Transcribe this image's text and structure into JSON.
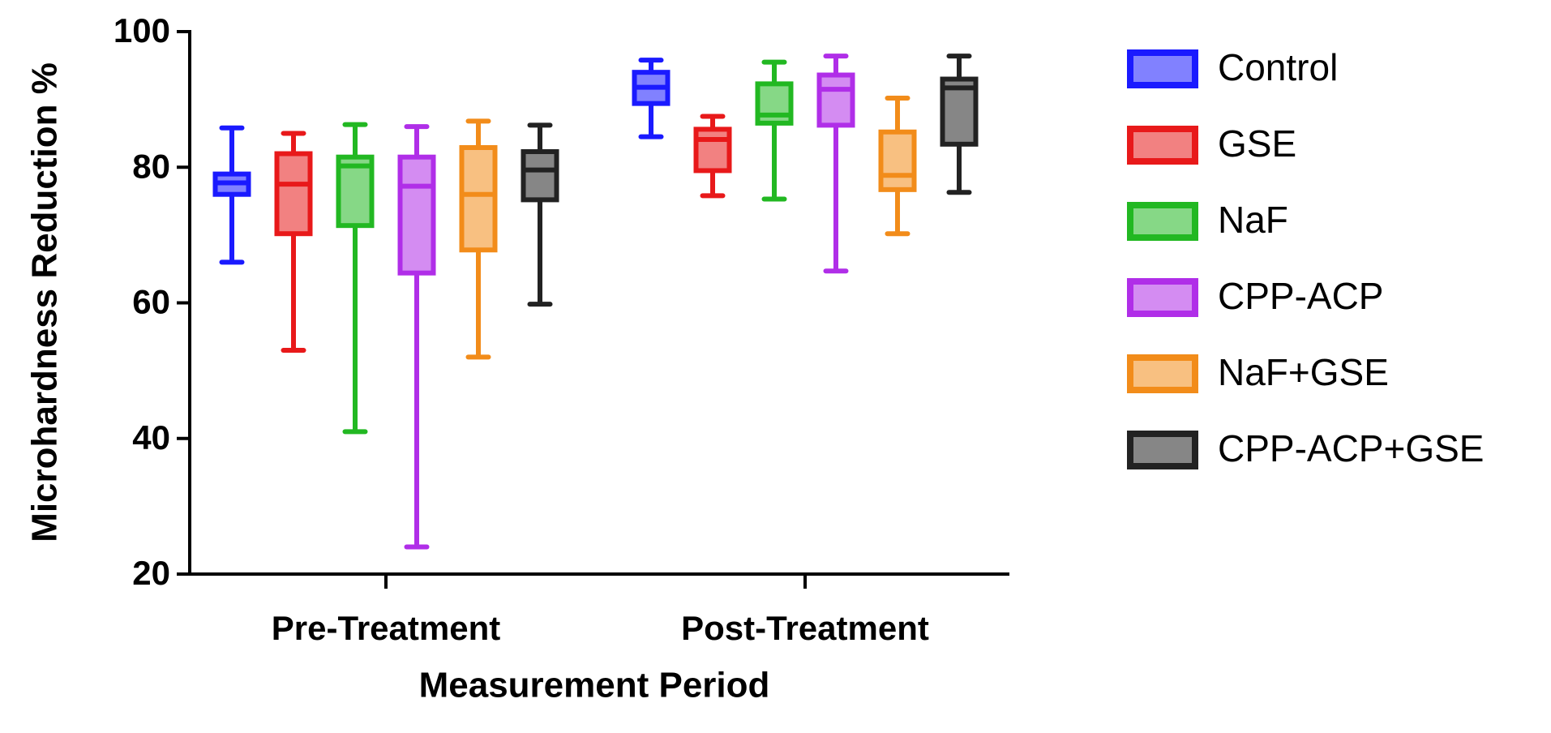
{
  "chart_data": {
    "type": "box",
    "x_label": "Measurement Period",
    "y_label": "Microhardness Reduction %",
    "categories": [
      "Pre-Treatment",
      "Post-Treatment"
    ],
    "ylim": [
      20,
      100
    ],
    "yticks": [
      20,
      40,
      60,
      80,
      100
    ],
    "series": [
      {
        "name": "Control",
        "color": "#1a1aff",
        "values": [
          {
            "min": 66,
            "q1": 76,
            "median": 77.7,
            "q3": 79,
            "max": 85.8
          },
          {
            "min": 84.5,
            "q1": 89.4,
            "median": 91.8,
            "q3": 94,
            "max": 95.8
          }
        ]
      },
      {
        "name": "GSE",
        "color": "#e8191a",
        "values": [
          {
            "min": 53,
            "q1": 70.2,
            "median": 77.5,
            "q3": 82,
            "max": 85
          },
          {
            "min": 75.8,
            "q1": 79.5,
            "median": 84.1,
            "q3": 85.6,
            "max": 87.5
          }
        ]
      },
      {
        "name": "NaF",
        "color": "#22b822",
        "values": [
          {
            "min": 41,
            "q1": 71.4,
            "median": 80.2,
            "q3": 81.5,
            "max": 86.3
          },
          {
            "min": 75.3,
            "q1": 86.5,
            "median": 87.7,
            "q3": 92.3,
            "max": 95.5
          }
        ]
      },
      {
        "name": "CPP-ACP",
        "color": "#b02ee8",
        "values": [
          {
            "min": 24,
            "q1": 64.4,
            "median": 77.2,
            "q3": 81.5,
            "max": 86
          },
          {
            "min": 64.7,
            "q1": 86.2,
            "median": 91.5,
            "q3": 93.6,
            "max": 96.4
          }
        ]
      },
      {
        "name": "NaF+GSE",
        "color": "#f28c1a",
        "values": [
          {
            "min": 52,
            "q1": 67.8,
            "median": 76,
            "q3": 82.9,
            "max": 86.8
          },
          {
            "min": 70.2,
            "q1": 76.7,
            "median": 78.8,
            "q3": 85.2,
            "max": 90.2
          }
        ]
      },
      {
        "name": "CPP-ACP+GSE",
        "color": "#222222",
        "values": [
          {
            "min": 59.8,
            "q1": 75.2,
            "median": 79.6,
            "q3": 82.3,
            "max": 86.2
          },
          {
            "min": 76.3,
            "q1": 83.4,
            "median": 91.7,
            "q3": 93,
            "max": 96.4
          }
        ]
      }
    ]
  }
}
